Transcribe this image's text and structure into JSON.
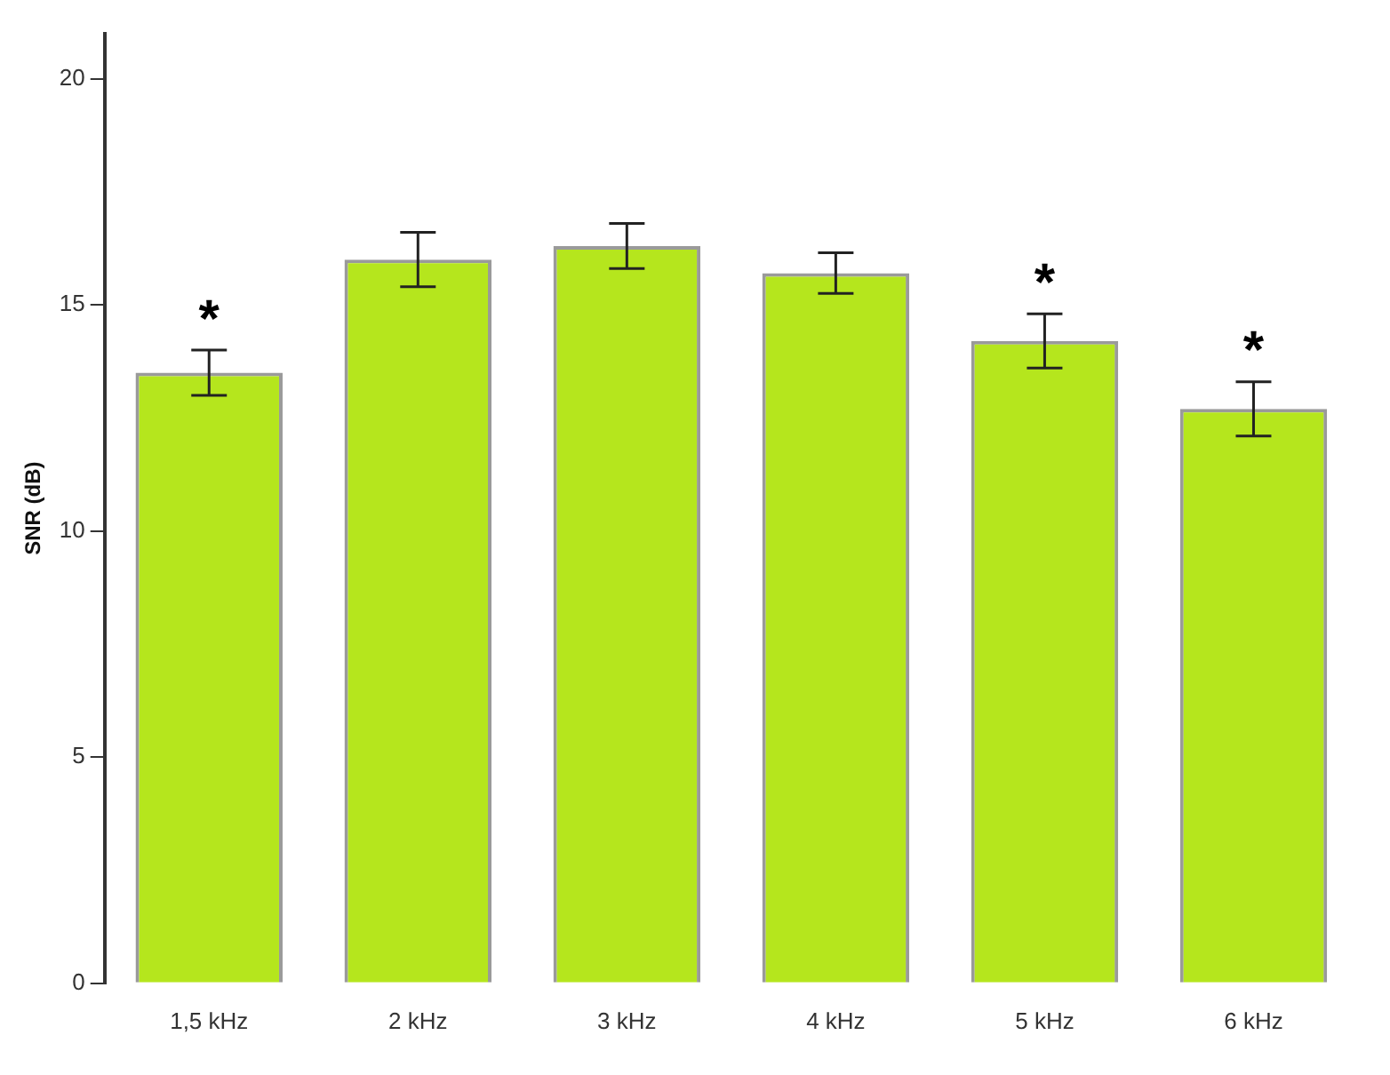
{
  "chart_data": {
    "type": "bar",
    "ylabel": "SNR (dB)",
    "categories": [
      "1,5 kHz",
      "2 kHz",
      "3 kHz",
      "4 kHz",
      "5 kHz",
      "6 kHz"
    ],
    "values": [
      13.5,
      16.0,
      16.3,
      15.7,
      14.2,
      12.7
    ],
    "errors": [
      0.5,
      0.6,
      0.5,
      0.45,
      0.6,
      0.6
    ],
    "color": "#b5e61d",
    "ylim": [
      0,
      21
    ],
    "yticks": [
      0,
      5,
      10,
      15,
      20
    ],
    "grid": false,
    "value_labels": [
      "*",
      null,
      null,
      null,
      "*",
      "*"
    ]
  }
}
